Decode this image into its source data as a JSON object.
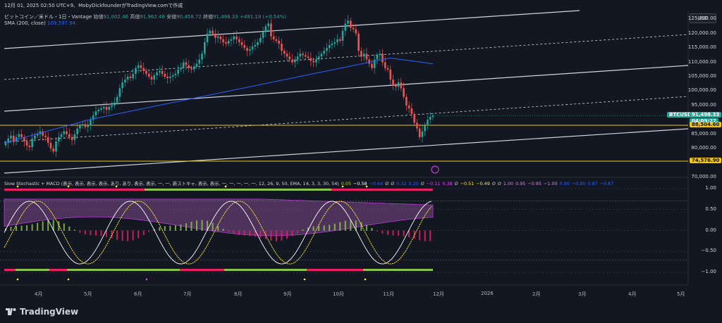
{
  "header": {
    "line1": "12月 01, 2025 02:50 UTC+9、MobyDickfounderがTradingView.comで作成",
    "symbol": "ビットコイン／米ドル・1日・Vantage",
    "o_label": "始値",
    "o_value": "91,002.46",
    "h_label": "高値",
    "h_value": "91,962.48",
    "l_label": "安値",
    "l_value": "90,458.72",
    "c_label": "終値",
    "c_value": "91,498.33",
    "change": "+491.19 (+0.54%)",
    "sma_label": "SMA (200, close)",
    "sma_value": "109,597.94"
  },
  "currency_button": "USD",
  "price_axis": {
    "ticks": [
      "125,000.00",
      "120,000.00",
      "115,000.00",
      "110,000.00",
      "105,000.00",
      "100,000.00",
      "95,000.00",
      "85,000.00",
      "80,000.00",
      "70,000.00"
    ],
    "symbol_tag": "BTCUSD",
    "price_tag": "91,498.33",
    "countdown": "04:09:27",
    "level_tag_1": "88,504.60",
    "level_tag_2": "74,576.90"
  },
  "indicator": {
    "title": "Slow Stochastic + MACD (表示, 表示, 表示, 表示, あり, あり, 表示, 表示, 一, 一, 新ストキャ, 表示, 表示, 一, 一, 一, 一, 一, 12, 26, 9, 50, EMA, 14, 3, 3, 30, 54)",
    "values": [
      {
        "v": "0.05",
        "c": "#c3d43a"
      },
      {
        "v": "−0.58",
        "c": "#ffffff"
      },
      {
        "v": "−0.64",
        "c": "#2962ff"
      },
      {
        "v": "Ø",
        "c": "#b2b5be"
      },
      {
        "v": "Ø",
        "c": "#b2b5be"
      },
      {
        "v": "0.32",
        "c": "#2962ff"
      },
      {
        "v": "0.20",
        "c": "#2962ff"
      },
      {
        "v": "Ø",
        "c": "#b2b5be"
      },
      {
        "v": "−0.11",
        "c": "#e040fb"
      },
      {
        "v": "0.38",
        "c": "#e040fb"
      },
      {
        "v": "Ø",
        "c": "#b2b5be"
      },
      {
        "v": "−0.51",
        "c": "#ffeb3b"
      },
      {
        "v": "−0.49",
        "c": "#ffeb3b"
      },
      {
        "v": "Ø",
        "c": "#b2b5be"
      },
      {
        "v": "Ø",
        "c": "#b2b5be"
      },
      {
        "v": "1.00",
        "c": "#ce93d8"
      },
      {
        "v": "0.95",
        "c": "#ce93d8"
      },
      {
        "v": "−0.95",
        "c": "#ce93d8"
      },
      {
        "v": "−1.00",
        "c": "#ce93d8"
      },
      {
        "v": "0.90",
        "c": "#2962ff"
      },
      {
        "v": "−0.90",
        "c": "#2962ff"
      },
      {
        "v": "0.87",
        "c": "#2962ff"
      },
      {
        "v": "−0.87",
        "c": "#2962ff"
      }
    ],
    "axis_ticks": [
      "1.00",
      "0.50",
      "0.00",
      "−0.50",
      "−1.00"
    ]
  },
  "time_axis": [
    "4月",
    "5月",
    "6月",
    "7月",
    "8月",
    "9月",
    "10月",
    "11月",
    "12月",
    "2026",
    "2月",
    "3月",
    "4月",
    "5月"
  ],
  "logo_text": "TradingView",
  "colors": {
    "up": "#26a69a",
    "down": "#ef5350",
    "sma": "#2962ff",
    "level": "#f0c419",
    "channel": "#d1d4dc",
    "macd_pos": "#8bc34a",
    "macd_neg": "#e91e63",
    "cloud": "#ba68c8"
  },
  "chart_data": {
    "type": "candlestick",
    "y_axis_range": [
      70000,
      128000
    ],
    "x_start_label": "4月",
    "closes": [
      82000,
      83500,
      84500,
      82500,
      84000,
      85000,
      84000,
      82500,
      81000,
      80500,
      83500,
      84500,
      85000,
      86000,
      84500,
      84000,
      82000,
      80000,
      79000,
      82500,
      84000,
      85000,
      86000,
      85000,
      84000,
      83000,
      85000,
      87000,
      88000,
      88500,
      87500,
      88000,
      90000,
      91500,
      93000,
      93500,
      94000,
      94500,
      93500,
      94500,
      95000,
      96000,
      98000,
      101000,
      103000,
      104000,
      105000,
      104500,
      106000,
      108000,
      109000,
      108000,
      107000,
      106000,
      105000,
      104000,
      105500,
      106500,
      107000,
      106000,
      105000,
      104500,
      105000,
      105500,
      106000,
      107500,
      108000,
      110000,
      109000,
      108000,
      107500,
      108500,
      109500,
      111000,
      113000,
      117000,
      120000,
      121000,
      120000,
      118500,
      119000,
      118000,
      117000,
      116500,
      117500,
      118000,
      119000,
      118000,
      117000,
      116000,
      115000,
      114000,
      114500,
      115500,
      116000,
      117000,
      118500,
      120500,
      122500,
      123500,
      119000,
      118000,
      117500,
      116500,
      114000,
      113000,
      112000,
      111000,
      110000,
      111000,
      112000,
      113000,
      112500,
      112000,
      111500,
      110500,
      110000,
      111000,
      112000,
      113000,
      114000,
      115000,
      116000,
      116500,
      117000,
      118000,
      117500,
      121000,
      123500,
      124500,
      122000,
      121500,
      120000,
      114000,
      112000,
      113000,
      111000,
      109500,
      108000,
      111000,
      112500,
      113000,
      110000,
      108000,
      107500,
      104000,
      102000,
      101500,
      103000,
      101000,
      98000,
      95000,
      94000,
      92000,
      89000,
      87000,
      84000,
      86000,
      88000,
      90000,
      91000,
      91498
    ]
  }
}
